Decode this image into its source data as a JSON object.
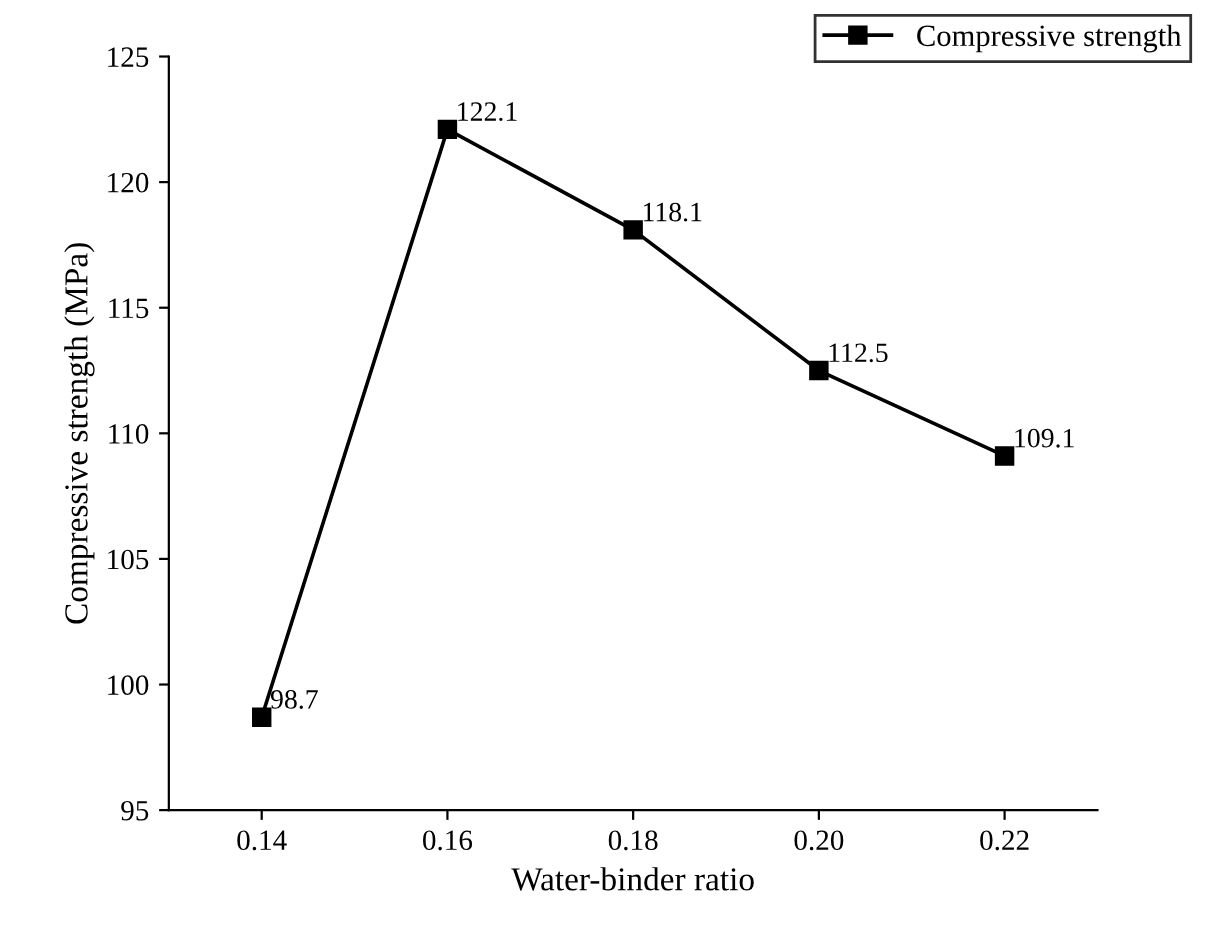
{
  "chart_data": {
    "type": "line",
    "xlabel": "Water-binder ratio",
    "ylabel": "Compressive strength (MPa)",
    "x": [
      0.14,
      0.16,
      0.18,
      0.2,
      0.22
    ],
    "series": [
      {
        "name": "Compressive strength",
        "color": "#000000",
        "values": [
          98.7,
          122.1,
          118.1,
          112.5,
          109.1
        ]
      }
    ],
    "xlim": [
      0.13,
      0.23
    ],
    "xticks": [
      {
        "value": 0.14,
        "label": "0.14"
      },
      {
        "value": 0.16,
        "label": "0.16"
      },
      {
        "value": 0.18,
        "label": "0.18"
      },
      {
        "value": 0.2,
        "label": "0.20"
      },
      {
        "value": 0.22,
        "label": "0.22"
      }
    ],
    "ylim": [
      95,
      125
    ],
    "yticks": [
      95,
      100,
      105,
      110,
      115,
      120,
      125
    ],
    "marker": "square",
    "line_style": "solid",
    "data_labels": true,
    "legend": "top right",
    "grid": false
  }
}
